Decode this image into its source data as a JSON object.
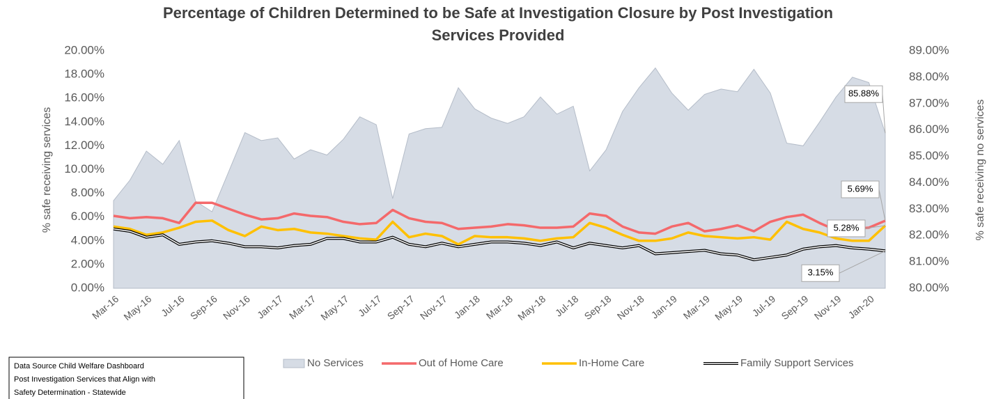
{
  "chart_data": {
    "type": "line",
    "title": [
      "Percentage of Children Determined to be Safe at Investigation Closure by Post Investigation",
      "Services Provided"
    ],
    "y_label": "% safe receiving services",
    "y2_label": "% safe receiving no services",
    "categories": [
      "Mar-16",
      null,
      "May-16",
      null,
      "Jul-16",
      null,
      "Sep-16",
      null,
      "Nov-16",
      null,
      "Jan-17",
      null,
      "Mar-17",
      null,
      "May-17",
      null,
      "Jul-17",
      null,
      "Sep-17",
      null,
      "Nov-17",
      null,
      "Jan-18",
      null,
      "Mar-18",
      null,
      "May-18",
      null,
      "Jul-18",
      null,
      "Sep-18",
      null,
      "Nov-18",
      null,
      "Jan-19",
      null,
      "Mar-19",
      null,
      "May-19",
      null,
      "Jul-19",
      null,
      "Sep-19",
      null,
      "Nov-19",
      null,
      "Jan-20",
      null
    ],
    "ylim": [
      0,
      20
    ],
    "yticks": [
      {
        "value": 0,
        "label": "0.00%"
      },
      {
        "value": 2,
        "label": "2.00%"
      },
      {
        "value": 4,
        "label": "4.00%"
      },
      {
        "value": 6,
        "label": "6.00%"
      },
      {
        "value": 8,
        "label": "8.00%"
      },
      {
        "value": 10,
        "label": "10.00%"
      },
      {
        "value": 12,
        "label": "12.00%"
      },
      {
        "value": 14,
        "label": "14.00%"
      },
      {
        "value": 16,
        "label": "16.00%"
      },
      {
        "value": 18,
        "label": "18.00%"
      },
      {
        "value": 20,
        "label": "20.00%"
      }
    ],
    "y2lim": [
      80,
      89
    ],
    "y2ticks": [
      {
        "value": 80,
        "label": "80.00%"
      },
      {
        "value": 81,
        "label": "81.00%"
      },
      {
        "value": 82,
        "label": "82.00%"
      },
      {
        "value": 83,
        "label": "83.00%"
      },
      {
        "value": 84,
        "label": "84.00%"
      },
      {
        "value": 85,
        "label": "85.00%"
      },
      {
        "value": 86,
        "label": "86.00%"
      },
      {
        "value": 87,
        "label": "87.00%"
      },
      {
        "value": 88,
        "label": "88.00%"
      },
      {
        "value": 89,
        "label": "89.00%"
      }
    ],
    "grid": false,
    "legend": "bottom",
    "series": [
      {
        "name": "No Services",
        "type": "area",
        "axis": "y2",
        "color": "#d6dce5",
        "values": [
          83.32,
          84.1,
          85.2,
          84.7,
          85.6,
          83.3,
          82.9,
          84.4,
          85.9,
          85.6,
          85.7,
          84.9,
          85.25,
          85.05,
          85.65,
          86.5,
          86.2,
          83.4,
          85.85,
          86.05,
          86.1,
          87.6,
          86.8,
          86.45,
          86.25,
          86.5,
          87.25,
          86.6,
          86.9,
          84.45,
          85.25,
          86.7,
          87.6,
          88.35,
          87.4,
          86.75,
          87.35,
          87.55,
          87.45,
          88.3,
          87.4,
          85.5,
          85.4,
          86.3,
          87.25,
          88.0,
          87.8,
          85.88
        ],
        "value_labels": [
          null,
          null,
          null,
          null,
          null,
          null,
          null,
          null,
          null,
          null,
          null,
          null,
          null,
          null,
          null,
          null,
          null,
          null,
          null,
          null,
          null,
          null,
          null,
          null,
          null,
          null,
          null,
          null,
          null,
          null,
          null,
          null,
          null,
          null,
          null,
          null,
          null,
          null,
          null,
          null,
          null,
          null,
          null,
          null,
          null,
          null,
          null,
          "85.88%"
        ]
      },
      {
        "name": "Out of Home Care",
        "type": "line",
        "color": "#f4696b",
        "values": [
          6.1,
          5.9,
          6.0,
          5.9,
          5.5,
          7.2,
          7.2,
          6.7,
          6.2,
          5.8,
          5.9,
          6.3,
          6.1,
          6.0,
          5.6,
          5.4,
          5.5,
          6.6,
          5.9,
          5.6,
          5.5,
          5.0,
          5.1,
          5.2,
          5.4,
          5.3,
          5.1,
          5.1,
          5.2,
          6.3,
          6.1,
          5.2,
          4.7,
          4.6,
          5.2,
          5.5,
          4.8,
          5.0,
          5.3,
          4.8,
          5.6,
          6.0,
          6.2,
          5.5,
          4.9,
          5.0,
          5.1,
          5.69
        ],
        "value_labels": [
          null,
          null,
          null,
          null,
          null,
          null,
          null,
          null,
          null,
          null,
          null,
          null,
          null,
          null,
          null,
          null,
          null,
          null,
          null,
          null,
          null,
          null,
          null,
          null,
          null,
          null,
          null,
          null,
          null,
          null,
          null,
          null,
          null,
          null,
          null,
          null,
          null,
          null,
          null,
          null,
          null,
          null,
          null,
          null,
          null,
          null,
          null,
          "5.69%"
        ]
      },
      {
        "name": "In-Home Care",
        "type": "line",
        "color": "#ffc000",
        "values": [
          5.2,
          5.0,
          4.5,
          4.7,
          5.1,
          5.6,
          5.7,
          4.9,
          4.4,
          5.2,
          4.9,
          5.0,
          4.7,
          4.6,
          4.4,
          4.2,
          4.1,
          5.6,
          4.3,
          4.6,
          4.4,
          3.7,
          4.4,
          4.3,
          4.3,
          4.2,
          4.0,
          4.2,
          4.3,
          5.5,
          5.1,
          4.5,
          4.0,
          4.0,
          4.2,
          4.7,
          4.4,
          4.3,
          4.2,
          4.3,
          4.1,
          5.6,
          5.0,
          4.7,
          4.2,
          4.0,
          4.0,
          5.28
        ],
        "value_labels": [
          null,
          null,
          null,
          null,
          null,
          null,
          null,
          null,
          null,
          null,
          null,
          null,
          null,
          null,
          null,
          null,
          null,
          null,
          null,
          null,
          null,
          null,
          null,
          null,
          null,
          null,
          null,
          null,
          null,
          null,
          null,
          null,
          null,
          null,
          null,
          null,
          null,
          null,
          null,
          null,
          null,
          null,
          null,
          null,
          null,
          null,
          null,
          "5.28%"
        ]
      },
      {
        "name": "Family Support Services",
        "type": "double-line",
        "color": "#000000",
        "values": [
          5.0,
          4.8,
          4.3,
          4.5,
          3.7,
          3.9,
          4.0,
          3.8,
          3.5,
          3.5,
          3.4,
          3.6,
          3.7,
          4.2,
          4.2,
          3.9,
          3.9,
          4.3,
          3.7,
          3.5,
          3.8,
          3.5,
          3.7,
          3.9,
          3.9,
          3.8,
          3.6,
          3.9,
          3.4,
          3.8,
          3.6,
          3.4,
          3.6,
          2.9,
          3.0,
          3.1,
          3.2,
          2.9,
          2.8,
          2.4,
          2.6,
          2.8,
          3.3,
          3.5,
          3.6,
          3.4,
          3.3,
          3.15
        ],
        "value_labels": [
          null,
          null,
          null,
          null,
          null,
          null,
          null,
          null,
          null,
          null,
          null,
          null,
          null,
          null,
          null,
          null,
          null,
          null,
          null,
          null,
          null,
          null,
          null,
          null,
          null,
          null,
          null,
          null,
          null,
          null,
          null,
          null,
          null,
          null,
          null,
          null,
          null,
          null,
          null,
          null,
          null,
          null,
          null,
          null,
          null,
          null,
          null,
          "3.15%"
        ]
      }
    ],
    "notes": [
      "Data Source Child Welfare Dashboard",
      "Post Investigation Services that Align with",
      "Safety Determination - Statewide"
    ]
  }
}
